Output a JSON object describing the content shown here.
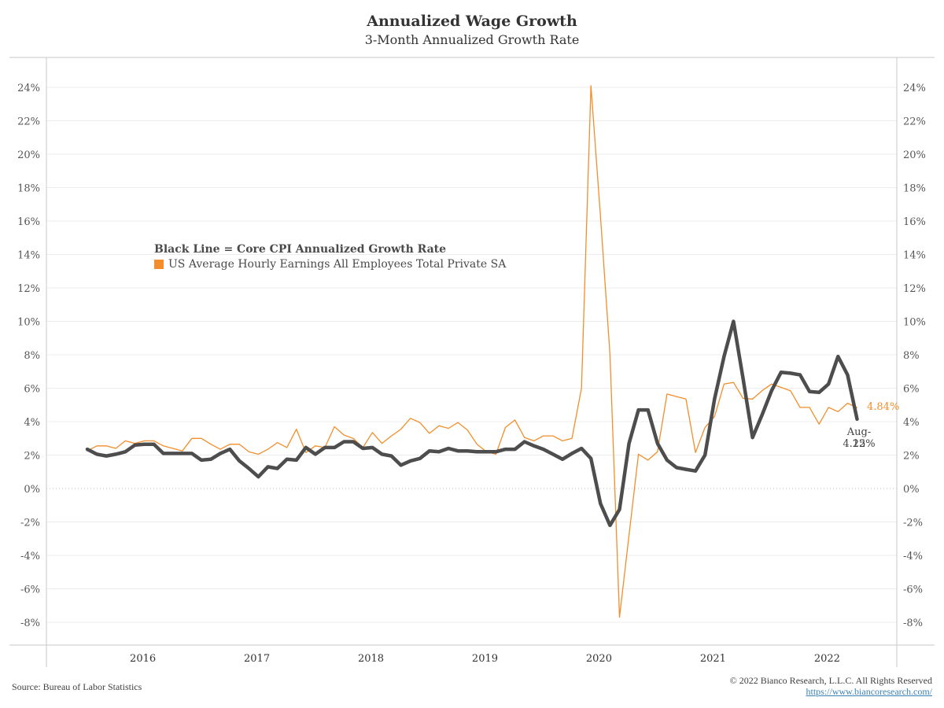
{
  "header": {
    "title": "Annualized Wage Growth",
    "subtitle": "3-Month Annualized Growth Rate"
  },
  "legend": {
    "black_line_label": "Black Line = Core CPI Annualized Growth Rate",
    "orange_label": "US Average Hourly Earnings All Employees Total Private SA"
  },
  "annotations": {
    "orange_end_value": "4.84%",
    "black_end_date": "Aug-22",
    "black_end_value": "4.15%"
  },
  "footer": {
    "source": "Source: Bureau of Labor Statistics",
    "copyright": "© 2022 Bianco Research, L.L.C. All Rights Reserved",
    "url": "https://www.biancoresearch.com/"
  },
  "colors": {
    "orange": "#f28e2b",
    "black": "#4d4d4d",
    "grid": "#ececec",
    "axis": "#c8c8c8"
  },
  "chart_data": {
    "type": "line",
    "title": "Annualized Wage Growth",
    "subtitle": "3-Month Annualized Growth Rate",
    "xlabel": "",
    "ylabel": "",
    "x_start": "2015-11",
    "x_end": "2022-08",
    "x_frequency": "monthly",
    "x_tick_labels": [
      "2016",
      "2017",
      "2018",
      "2019",
      "2020",
      "2021",
      "2022"
    ],
    "y_tick_labels": [
      "24%",
      "22%",
      "20%",
      "18%",
      "16%",
      "14%",
      "12%",
      "10%",
      "8%",
      "6%",
      "4%",
      "2%",
      "0%",
      "-2%",
      "-4%",
      "-6%",
      "-8%"
    ],
    "ylim": [
      -9.5,
      25.5
    ],
    "y_ticks": [
      24,
      22,
      20,
      18,
      16,
      14,
      12,
      10,
      8,
      6,
      4,
      2,
      0,
      -2,
      -4,
      -6,
      -8
    ],
    "dual_axis": true,
    "grid": true,
    "zero_line": "dotted",
    "legend_position": "upper-left",
    "series": [
      {
        "name": "Core CPI Annualized Growth Rate",
        "color": "#4d4d4d",
        "style": "thick",
        "values": [
          2.35,
          2.05,
          1.95,
          2.05,
          2.2,
          2.6,
          2.65,
          2.65,
          2.1,
          2.1,
          2.1,
          2.1,
          1.7,
          1.75,
          2.1,
          2.35,
          1.65,
          1.2,
          0.7,
          1.3,
          1.2,
          1.75,
          1.7,
          2.45,
          2.05,
          2.45,
          2.45,
          2.8,
          2.8,
          2.4,
          2.45,
          2.05,
          1.95,
          1.4,
          1.65,
          1.8,
          2.25,
          2.2,
          2.4,
          2.25,
          2.25,
          2.2,
          2.2,
          2.2,
          2.35,
          2.35,
          2.8,
          2.55,
          2.35,
          2.05,
          1.75,
          2.1,
          2.4,
          1.8,
          -0.9,
          -2.2,
          -1.25,
          2.7,
          4.7,
          4.7,
          2.7,
          1.7,
          1.25,
          1.15,
          1.05,
          2.0,
          5.35,
          7.9,
          10.0,
          6.6,
          3.05,
          4.4,
          5.85,
          6.95,
          6.9,
          6.8,
          5.8,
          5.75,
          6.25,
          7.9,
          6.8,
          4.15
        ]
      },
      {
        "name": "US Average Hourly Earnings All Employees Total Private SA",
        "color": "#f28e2b",
        "style": "thin",
        "values": [
          2.25,
          2.55,
          2.55,
          2.4,
          2.85,
          2.7,
          2.85,
          2.85,
          2.55,
          2.4,
          2.25,
          3.0,
          3.0,
          2.65,
          2.35,
          2.65,
          2.65,
          2.2,
          2.05,
          2.35,
          2.75,
          2.45,
          3.55,
          2.15,
          2.55,
          2.45,
          3.7,
          3.2,
          3.0,
          2.45,
          3.35,
          2.7,
          3.15,
          3.55,
          4.2,
          3.95,
          3.3,
          3.75,
          3.6,
          3.95,
          3.5,
          2.65,
          2.2,
          2.05,
          3.65,
          4.1,
          3.05,
          2.85,
          3.15,
          3.15,
          2.85,
          3.0,
          6.0,
          24.1,
          16.3,
          8.0,
          -7.7,
          -2.8,
          2.05,
          1.7,
          2.2,
          5.65,
          5.5,
          5.35,
          2.15,
          3.65,
          4.3,
          6.25,
          6.35,
          5.4,
          5.35,
          5.85,
          6.25,
          6.05,
          5.85,
          4.85,
          4.85,
          3.85,
          4.85,
          4.6,
          5.1,
          4.84
        ]
      }
    ]
  }
}
